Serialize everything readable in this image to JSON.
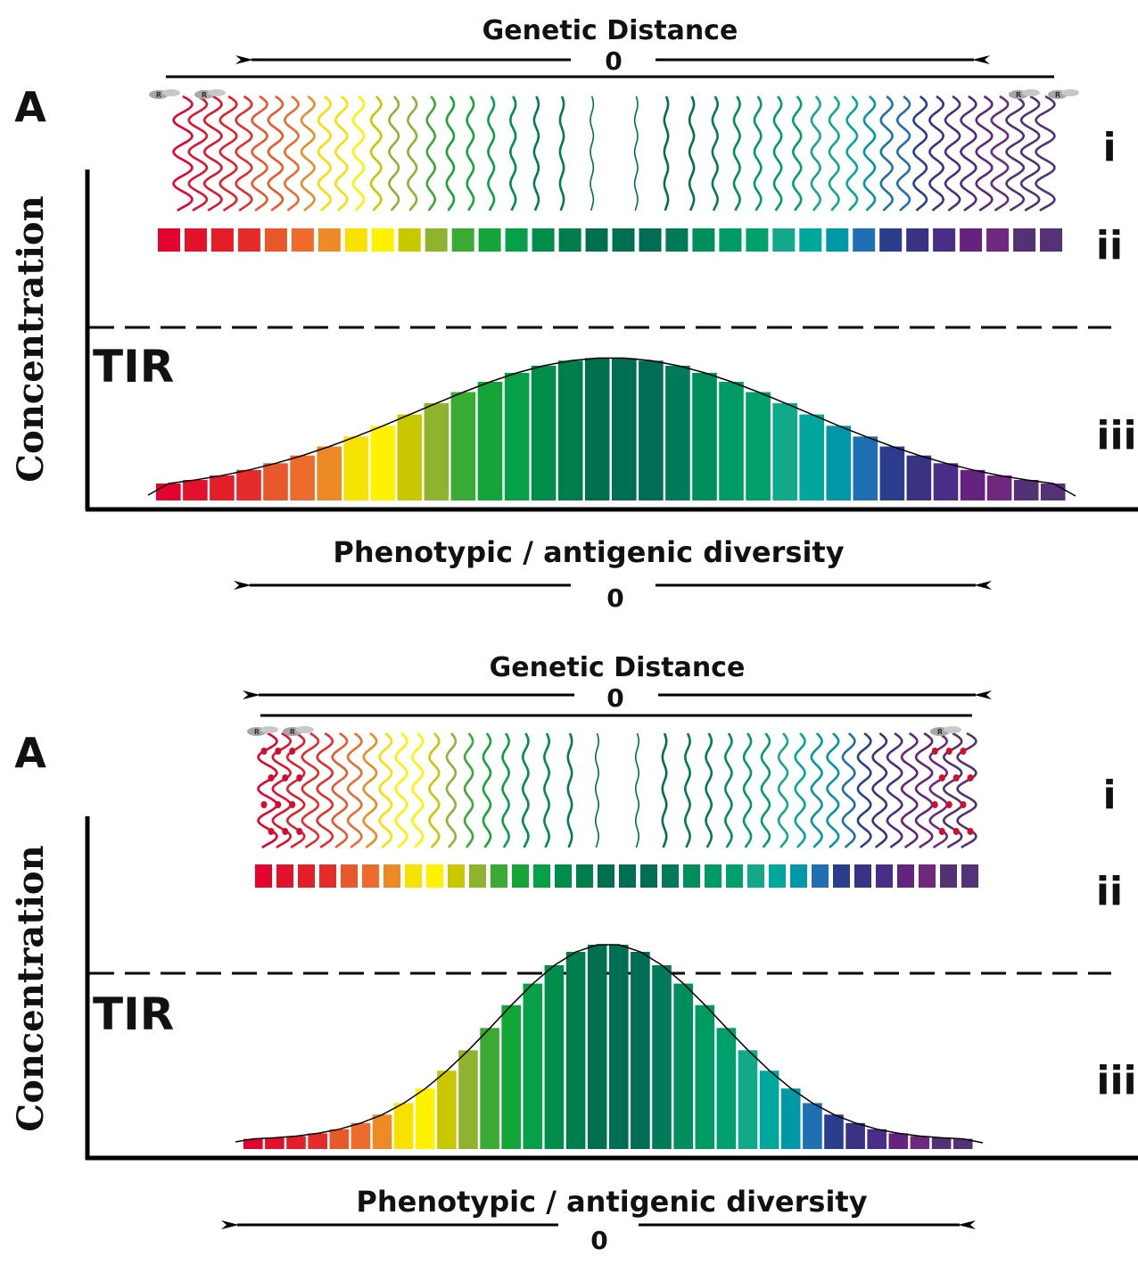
{
  "panels": [
    {
      "id": "top",
      "genetic_distance_label": "Genetic Distance",
      "genetic_zero": "0",
      "panel_letter": "A",
      "row_labels": [
        "i",
        "ii",
        "iii"
      ],
      "threshold_label": "TIR",
      "y_axis_label": "Concentration",
      "phenotypic_label": "Phenotypic / antigenic diversity",
      "phenotypic_zero": "0",
      "marker_letter": "R",
      "distribution": "broad",
      "bars_exceed_threshold": false
    },
    {
      "id": "bottom",
      "genetic_distance_label": "Genetic Distance",
      "genetic_zero": "0",
      "panel_letter": "A",
      "row_labels": [
        "i",
        "ii",
        "iii"
      ],
      "threshold_label": "TIR",
      "y_axis_label": "Concentration",
      "phenotypic_label": "Phenotypic / antigenic diversity",
      "phenotypic_zero": "0",
      "marker_letter": "R",
      "distribution": "narrow",
      "bars_exceed_threshold": true
    }
  ],
  "colors": {
    "spectrum": [
      "#e4032e",
      "#e3122c",
      "#e31e28",
      "#e62c2a",
      "#e9582b",
      "#ec6b2d",
      "#ee8a26",
      "#f6e100",
      "#fff200",
      "#c9c800",
      "#8fb32e",
      "#3aaa35",
      "#13a538",
      "#079f47",
      "#008c4a",
      "#007d4c",
      "#006f4d",
      "#006e52",
      "#006d55",
      "#007a58",
      "#008e5c",
      "#009a64",
      "#00a06d",
      "#12a88a",
      "#00a79d",
      "#0097a7",
      "#1f6fb3",
      "#2c3d8d",
      "#3a3282",
      "#4a2d86",
      "#64237f",
      "#70287f",
      "#523174",
      "#553176"
    ],
    "threshold_line": "#000000",
    "axis": "#000000"
  }
}
